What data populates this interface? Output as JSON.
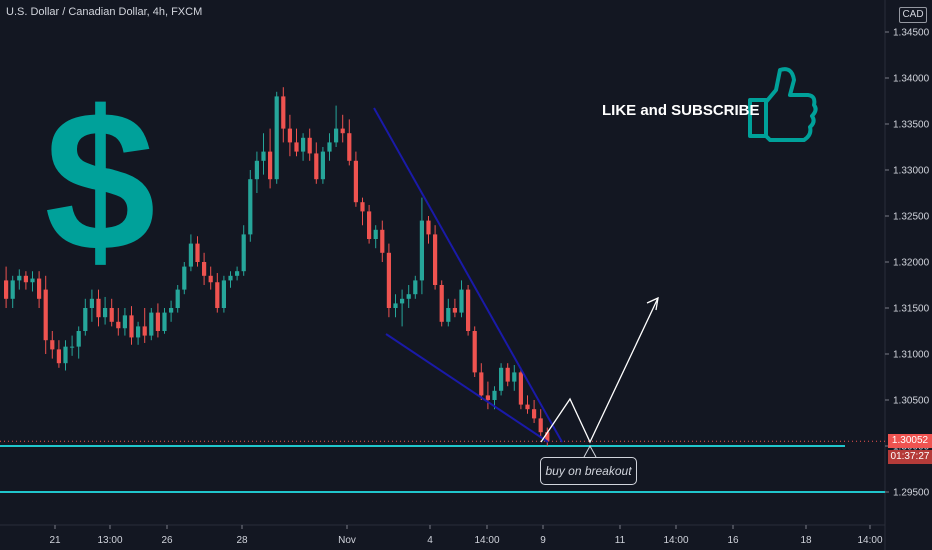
{
  "header": {
    "title": "U.S. Dollar / Canadian Dollar, 4h, FXCM",
    "currency": "CAD"
  },
  "annotations": {
    "like_text": "LIKE and SUBSCRIBE",
    "callout": "buy on breakout",
    "dollar_icon": "dollar-sign-icon",
    "thumb_icon": "thumbs-up-icon"
  },
  "current": {
    "price": "1.30052",
    "countdown": "01:37:27"
  },
  "colors": {
    "background": "#131722",
    "up": "#26a69a",
    "down": "#ef5350",
    "accent": "#00a19a",
    "trendline": "#1a1aa8",
    "support": "#20c5cc",
    "price_tag": "#ef5350"
  },
  "chart_data": {
    "type": "candlestick",
    "symbol": "USDCAD",
    "timeframe": "4h",
    "y_ticks": [
      "1.34500",
      "1.34000",
      "1.33500",
      "1.33000",
      "1.32500",
      "1.32000",
      "1.31500",
      "1.31000",
      "1.30500",
      "1.30000",
      "1.29500"
    ],
    "y_tick_values": [
      1.345,
      1.34,
      1.335,
      1.33,
      1.325,
      1.32,
      1.315,
      1.31,
      1.305,
      1.3,
      1.295
    ],
    "x_ticks": [
      "21",
      "13:00",
      "26",
      "28",
      "Nov",
      "4",
      "14:00",
      "9",
      "11",
      "14:00",
      "16",
      "18",
      "14:00"
    ],
    "ylim": [
      1.2925,
      1.3475
    ],
    "candles": [
      [
        1.318,
        1.3195,
        1.315,
        1.316
      ],
      [
        1.316,
        1.3185,
        1.315,
        1.318
      ],
      [
        1.318,
        1.3192,
        1.317,
        1.3185
      ],
      [
        1.3185,
        1.319,
        1.317,
        1.3178
      ],
      [
        1.3178,
        1.319,
        1.3168,
        1.3182
      ],
      [
        1.3182,
        1.319,
        1.315,
        1.316
      ],
      [
        1.317,
        1.3185,
        1.31,
        1.3115
      ],
      [
        1.3115,
        1.3125,
        1.3095,
        1.3105
      ],
      [
        1.3105,
        1.3115,
        1.3085,
        1.309
      ],
      [
        1.309,
        1.3115,
        1.3082,
        1.3108
      ],
      [
        1.3108,
        1.312,
        1.3098,
        1.3108
      ],
      [
        1.3108,
        1.313,
        1.3095,
        1.3125
      ],
      [
        1.3125,
        1.316,
        1.312,
        1.315
      ],
      [
        1.315,
        1.317,
        1.3135,
        1.316
      ],
      [
        1.316,
        1.317,
        1.313,
        1.314
      ],
      [
        1.314,
        1.3162,
        1.3132,
        1.315
      ],
      [
        1.315,
        1.316,
        1.313,
        1.3135
      ],
      [
        1.3135,
        1.315,
        1.312,
        1.3128
      ],
      [
        1.3128,
        1.315,
        1.312,
        1.3142
      ],
      [
        1.3142,
        1.3152,
        1.311,
        1.3118
      ],
      [
        1.3118,
        1.3135,
        1.311,
        1.313
      ],
      [
        1.313,
        1.315,
        1.3112,
        1.312
      ],
      [
        1.312,
        1.315,
        1.3115,
        1.3145
      ],
      [
        1.3145,
        1.3155,
        1.3118,
        1.3125
      ],
      [
        1.3125,
        1.315,
        1.3122,
        1.3145
      ],
      [
        1.3145,
        1.3158,
        1.3135,
        1.315
      ],
      [
        1.315,
        1.3175,
        1.3145,
        1.317
      ],
      [
        1.317,
        1.32,
        1.3165,
        1.3195
      ],
      [
        1.3195,
        1.323,
        1.319,
        1.322
      ],
      [
        1.322,
        1.3228,
        1.3195,
        1.32
      ],
      [
        1.32,
        1.321,
        1.3175,
        1.3185
      ],
      [
        1.3185,
        1.3195,
        1.317,
        1.3178
      ],
      [
        1.3178,
        1.3188,
        1.3145,
        1.315
      ],
      [
        1.315,
        1.3185,
        1.3145,
        1.318
      ],
      [
        1.318,
        1.319,
        1.3172,
        1.3185
      ],
      [
        1.3185,
        1.3195,
        1.318,
        1.319
      ],
      [
        1.319,
        1.324,
        1.3185,
        1.323
      ],
      [
        1.323,
        1.33,
        1.3222,
        1.329
      ],
      [
        1.329,
        1.332,
        1.3275,
        1.331
      ],
      [
        1.331,
        1.334,
        1.3295,
        1.332
      ],
      [
        1.332,
        1.3345,
        1.328,
        1.329
      ],
      [
        1.329,
        1.3385,
        1.3285,
        1.338
      ],
      [
        1.338,
        1.339,
        1.333,
        1.3345
      ],
      [
        1.3345,
        1.336,
        1.3315,
        1.333
      ],
      [
        1.333,
        1.3345,
        1.3315,
        1.332
      ],
      [
        1.332,
        1.334,
        1.331,
        1.3335
      ],
      [
        1.3335,
        1.3345,
        1.331,
        1.3318
      ],
      [
        1.3318,
        1.333,
        1.3285,
        1.329
      ],
      [
        1.329,
        1.3325,
        1.3285,
        1.332
      ],
      [
        1.332,
        1.334,
        1.331,
        1.333
      ],
      [
        1.333,
        1.337,
        1.3325,
        1.3345
      ],
      [
        1.3345,
        1.336,
        1.333,
        1.334
      ],
      [
        1.334,
        1.3355,
        1.3305,
        1.331
      ],
      [
        1.331,
        1.332,
        1.326,
        1.3265
      ],
      [
        1.3265,
        1.327,
        1.324,
        1.3255
      ],
      [
        1.3255,
        1.3262,
        1.322,
        1.3225
      ],
      [
        1.3225,
        1.324,
        1.3215,
        1.3235
      ],
      [
        1.3235,
        1.3245,
        1.32,
        1.321
      ],
      [
        1.321,
        1.322,
        1.314,
        1.315
      ],
      [
        1.315,
        1.3165,
        1.314,
        1.3155
      ],
      [
        1.3155,
        1.317,
        1.313,
        1.316
      ],
      [
        1.316,
        1.3175,
        1.315,
        1.3165
      ],
      [
        1.3165,
        1.3185,
        1.316,
        1.318
      ],
      [
        1.318,
        1.327,
        1.3165,
        1.3245
      ],
      [
        1.3245,
        1.325,
        1.322,
        1.323
      ],
      [
        1.323,
        1.324,
        1.317,
        1.3175
      ],
      [
        1.3175,
        1.318,
        1.313,
        1.3135
      ],
      [
        1.3135,
        1.316,
        1.313,
        1.315
      ],
      [
        1.315,
        1.316,
        1.314,
        1.3145
      ],
      [
        1.3145,
        1.318,
        1.314,
        1.317
      ],
      [
        1.317,
        1.3175,
        1.312,
        1.3125
      ],
      [
        1.3125,
        1.313,
        1.3075,
        1.308
      ],
      [
        1.308,
        1.309,
        1.305,
        1.3055
      ],
      [
        1.3055,
        1.307,
        1.304,
        1.305
      ],
      [
        1.305,
        1.3065,
        1.304,
        1.306
      ],
      [
        1.306,
        1.309,
        1.3055,
        1.3085
      ],
      [
        1.3085,
        1.309,
        1.3065,
        1.307
      ],
      [
        1.307,
        1.3088,
        1.306,
        1.308
      ],
      [
        1.308,
        1.3085,
        1.304,
        1.3045
      ],
      [
        1.3045,
        1.3055,
        1.3035,
        1.304
      ],
      [
        1.304,
        1.305,
        1.3025,
        1.303
      ],
      [
        1.303,
        1.304,
        1.301,
        1.3015
      ],
      [
        1.3015,
        1.302,
        1.3,
        1.3005
      ]
    ],
    "resistance_line": {
      "start": [
        1,
        1.337
      ],
      "end": [
        1.12,
        1.3005
      ]
    },
    "support_trendline": {
      "start": [
        0.85,
        1.312
      ],
      "end": [
        1.09,
        1.3
      ]
    },
    "horizontal_levels": [
      1.3,
      1.295
    ],
    "projection_path": [
      1.3005,
      1.3052,
      1.3,
      1.3165
    ]
  }
}
